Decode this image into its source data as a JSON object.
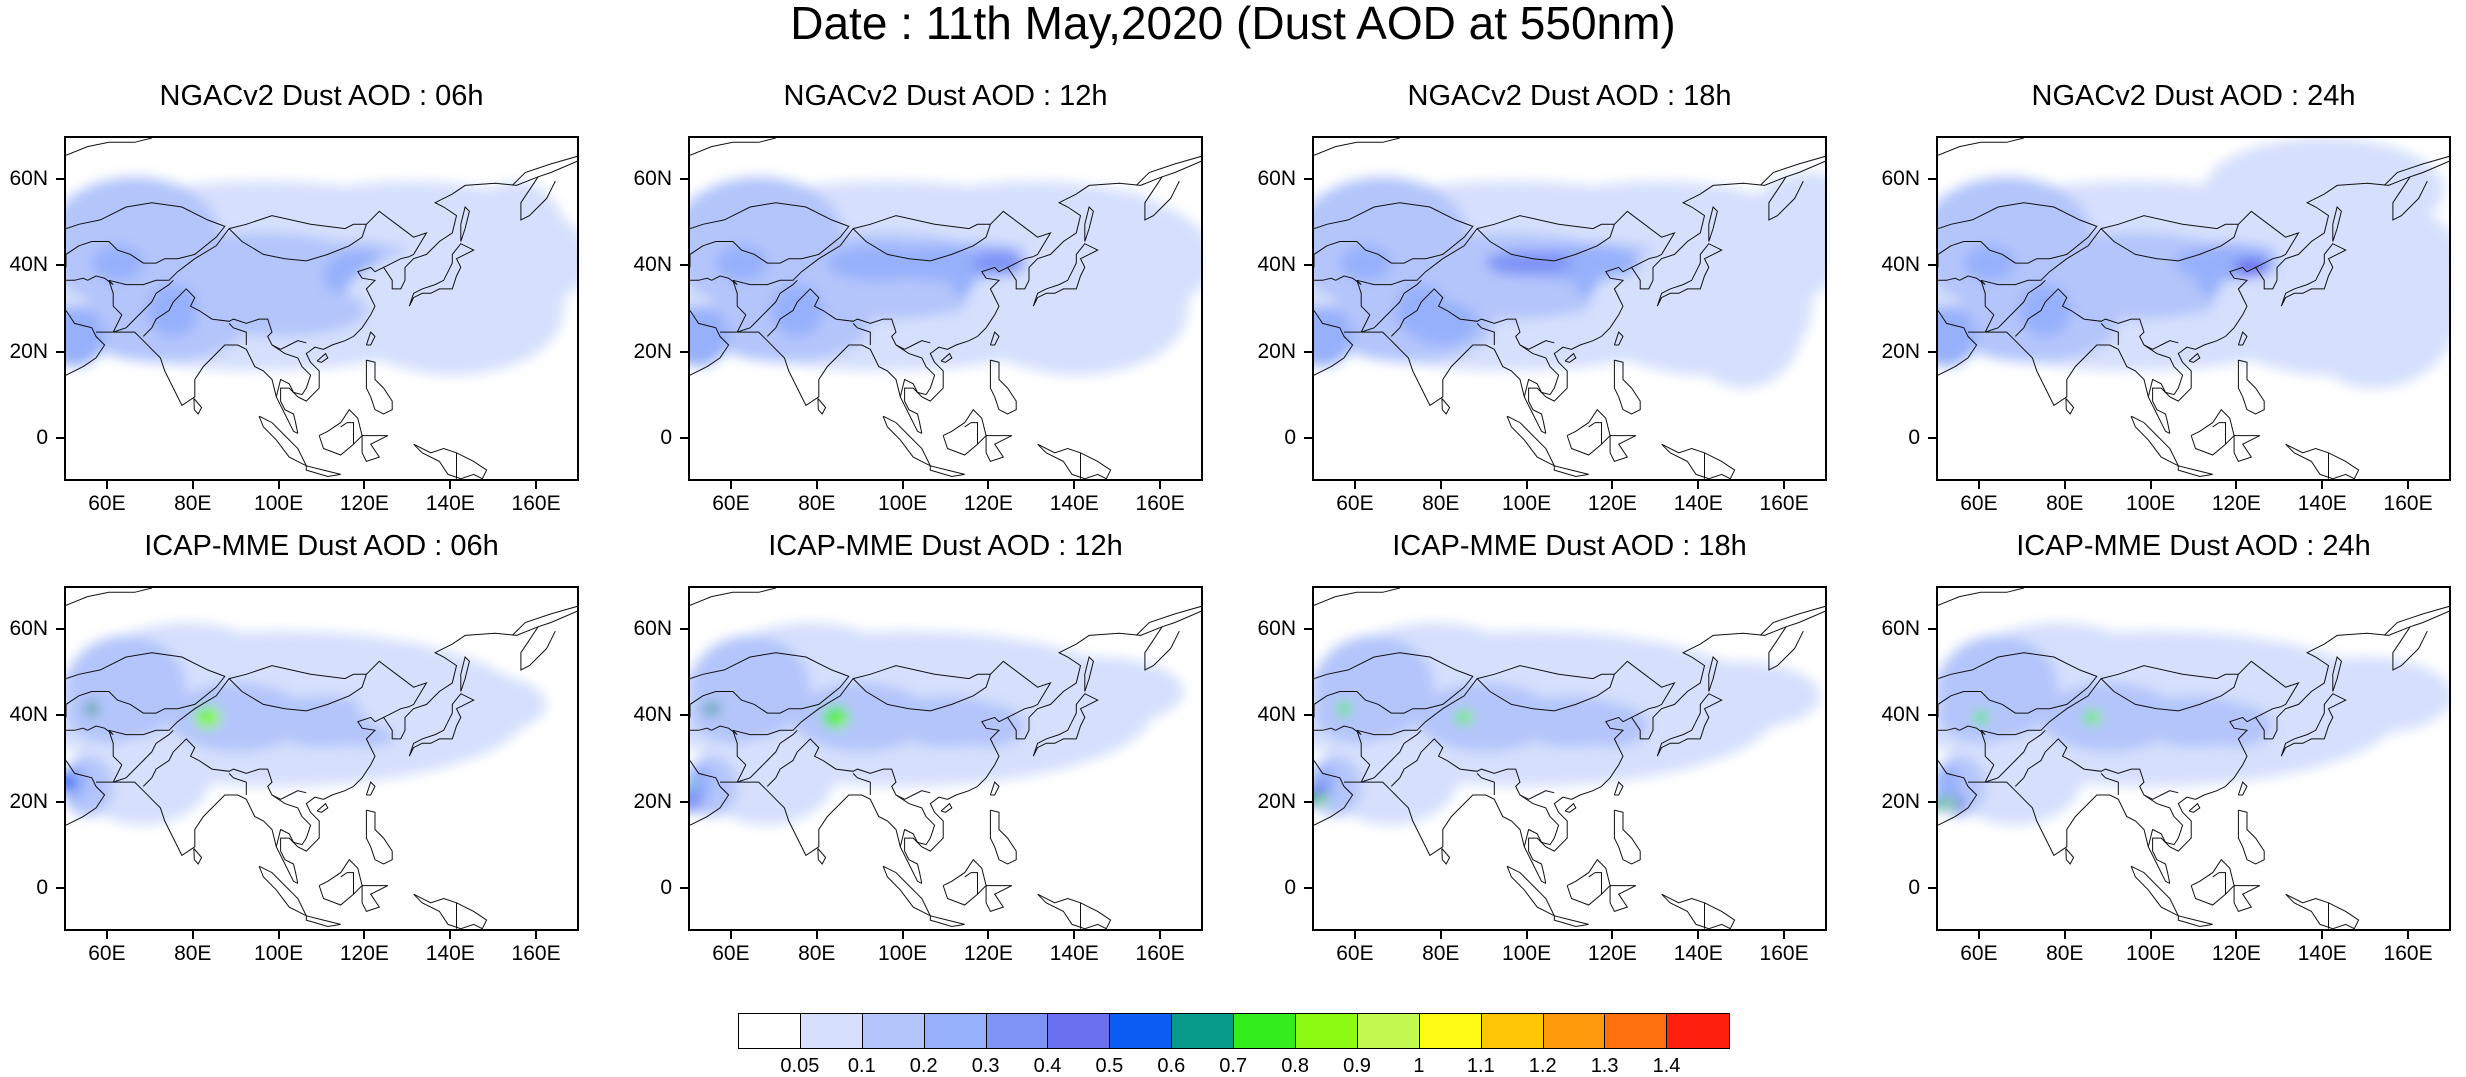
{
  "title": "Date : 11th May,2020 (Dust AOD at 550nm)",
  "axes": {
    "lat_ticks": [
      "60N",
      "40N",
      "20N",
      "0"
    ],
    "lat_values": [
      60,
      40,
      20,
      0
    ],
    "lon_ticks": [
      "60E",
      "80E",
      "100E",
      "120E",
      "140E",
      "160E"
    ],
    "lon_values": [
      60,
      80,
      100,
      120,
      140,
      160
    ],
    "lat_range": [
      -10,
      70
    ],
    "lon_range": [
      50,
      170
    ]
  },
  "panels": [
    {
      "title": "NGACv2 Dust AOD : 06h",
      "model": "NGACv2",
      "lead": "06h"
    },
    {
      "title": "NGACv2 Dust AOD : 12h",
      "model": "NGACv2",
      "lead": "12h"
    },
    {
      "title": "NGACv2 Dust AOD : 18h",
      "model": "NGACv2",
      "lead": "18h"
    },
    {
      "title": "NGACv2 Dust AOD : 24h",
      "model": "NGACv2",
      "lead": "24h"
    },
    {
      "title": "ICAP-MME Dust AOD : 06h",
      "model": "ICAP-MME",
      "lead": "06h"
    },
    {
      "title": "ICAP-MME Dust AOD : 12h",
      "model": "ICAP-MME",
      "lead": "12h"
    },
    {
      "title": "ICAP-MME Dust AOD : 18h",
      "model": "ICAP-MME",
      "lead": "18h"
    },
    {
      "title": "ICAP-MME Dust AOD : 24h",
      "model": "ICAP-MME",
      "lead": "24h"
    }
  ],
  "colorbar": {
    "labels": [
      "0.05",
      "0.1",
      "0.2",
      "0.3",
      "0.4",
      "0.5",
      "0.6",
      "0.7",
      "0.8",
      "0.9",
      "1",
      "1.1",
      "1.2",
      "1.3",
      "1.4"
    ],
    "colors": [
      "#ffffff",
      "#d6e0fd",
      "#b4c5fb",
      "#96b0fb",
      "#8094f7",
      "#6a70ef",
      "#0b5cf0",
      "#089b8c",
      "#33ee1c",
      "#8dfa14",
      "#c3fa52",
      "#fffb14",
      "#ffc608",
      "#ff9a0c",
      "#ff710c",
      "#ff2010"
    ]
  }
}
